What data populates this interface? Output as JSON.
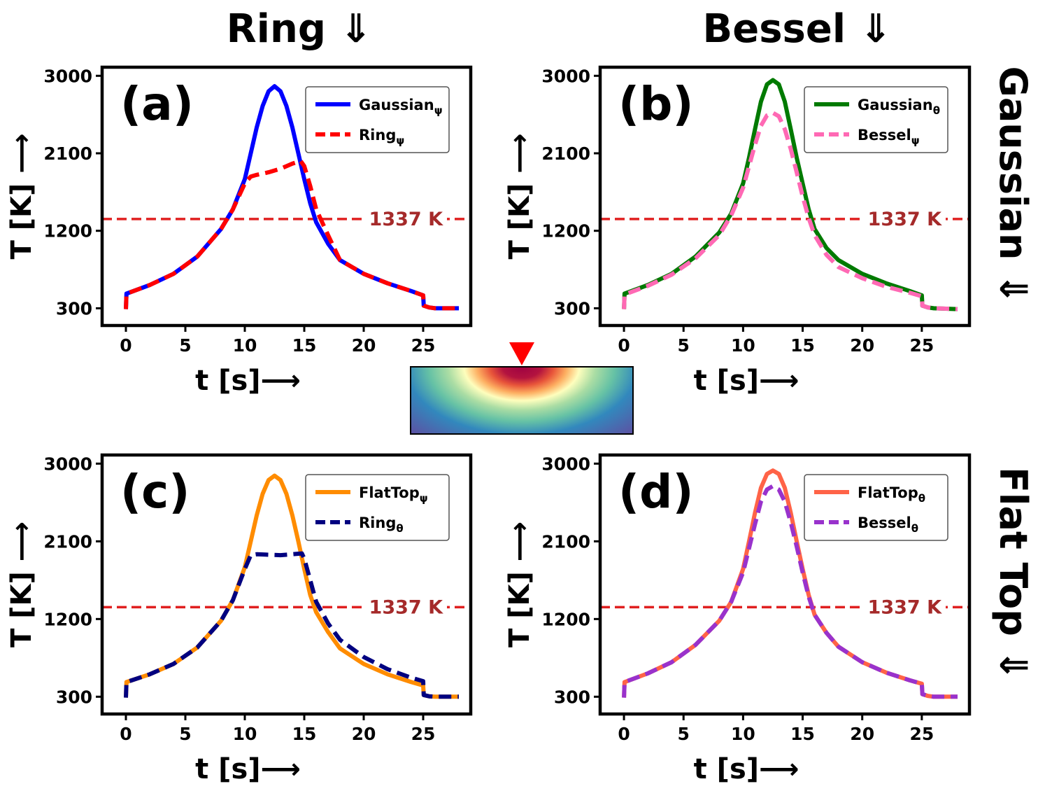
{
  "headers": {
    "col1": "Ring ⇓",
    "col2": "Bessel ⇓",
    "row1": "Gaussian ⇓",
    "row2": "Flat Top ⇓"
  },
  "colors": {
    "gaussian_psi": "#0000ff",
    "ring_psi": "#ff0000",
    "gaussian_theta": "#007a00",
    "bessel_psi": "#ff69b4",
    "flattop_psi": "#ff8c00",
    "ring_theta": "#000080",
    "flattop_theta": "#ff6347",
    "bessel_theta": "#9932cc",
    "melt_line": "#e02020",
    "melt_label": "#a52a2a",
    "marker": "#ff0000"
  },
  "inset": {
    "type": "heatmap-thumbnail",
    "colormap": "spectral",
    "marker_icon": "red-triangle-down"
  },
  "chart_data": [
    {
      "id": "a",
      "type": "line",
      "panel_label": "(a)",
      "xlabel": "t [s]⟶",
      "ylabel": "T [K] ⟶",
      "xlim": [
        -2,
        29
      ],
      "ylim": [
        100,
        3100
      ],
      "xticks": [
        0,
        5,
        10,
        15,
        20,
        25
      ],
      "yticks": [
        300,
        1200,
        2100,
        3000
      ],
      "hline": {
        "y": 1337,
        "label": "1337 K"
      },
      "legend": {
        "position": "top-right"
      },
      "series": [
        {
          "name": "Gaussianψ",
          "main": "Gaussian",
          "sub": "ψ",
          "style": "solid",
          "color_key": "gaussian_psi",
          "x": [
            0,
            0.05,
            2,
            4,
            6,
            8,
            9,
            10,
            10.5,
            11,
            11.5,
            12,
            12.5,
            13,
            13.5,
            14,
            14.5,
            15,
            15.5,
            16,
            17,
            18,
            20,
            22,
            24,
            25,
            25.05,
            25.5,
            26,
            28
          ],
          "y": [
            290,
            470,
            570,
            700,
            900,
            1220,
            1450,
            1800,
            2100,
            2400,
            2650,
            2820,
            2880,
            2820,
            2650,
            2400,
            2100,
            1800,
            1520,
            1300,
            1050,
            860,
            700,
            590,
            500,
            450,
            330,
            310,
            300,
            300
          ]
        },
        {
          "name": "Ringψ",
          "main": "Ring",
          "sub": "ψ",
          "style": "dashed",
          "color_key": "ring_psi",
          "x": [
            0,
            0.05,
            2,
            4,
            6,
            8,
            9,
            10,
            10.5,
            11,
            12,
            13,
            14,
            14.7,
            15,
            15.5,
            16,
            17,
            18,
            20,
            22,
            24,
            25,
            25.05,
            25.5,
            26,
            28
          ],
          "y": [
            290,
            470,
            570,
            700,
            900,
            1220,
            1450,
            1750,
            1830,
            1850,
            1880,
            1920,
            1980,
            2010,
            1950,
            1720,
            1450,
            1150,
            860,
            700,
            590,
            500,
            450,
            330,
            310,
            300,
            300
          ]
        }
      ]
    },
    {
      "id": "b",
      "type": "line",
      "panel_label": "(b)",
      "xlabel": "t [s]⟶",
      "ylabel": "T [K] ⟶",
      "xlim": [
        -2,
        29
      ],
      "ylim": [
        100,
        3100
      ],
      "xticks": [
        0,
        5,
        10,
        15,
        20,
        25
      ],
      "yticks": [
        300,
        1200,
        2100,
        3000
      ],
      "hline": {
        "y": 1337,
        "label": "1337 K"
      },
      "legend": {
        "position": "top-right"
      },
      "series": [
        {
          "name": "Gaussianθ",
          "main": "Gaussian",
          "sub": "θ",
          "style": "solid",
          "color_key": "gaussian_theta",
          "x": [
            0,
            0.05,
            2,
            4,
            6,
            8,
            9,
            10,
            10.5,
            11,
            11.5,
            12,
            12.5,
            13,
            13.5,
            14,
            14.5,
            15,
            15.5,
            16,
            17,
            18,
            20,
            22,
            24,
            25,
            25.05,
            25.5,
            26,
            28
          ],
          "y": [
            290,
            470,
            570,
            700,
            900,
            1180,
            1400,
            1750,
            2050,
            2380,
            2700,
            2900,
            2950,
            2900,
            2700,
            2380,
            2050,
            1750,
            1450,
            1220,
            1000,
            860,
            700,
            590,
            500,
            450,
            330,
            310,
            300,
            290
          ]
        },
        {
          "name": "Besselψ",
          "main": "Bessel",
          "sub": "ψ",
          "style": "dashed",
          "color_key": "bessel_psi",
          "x": [
            0,
            0.05,
            2,
            4,
            6,
            8,
            9,
            10,
            10.5,
            11,
            11.5,
            12,
            12.5,
            13,
            13.5,
            14,
            14.5,
            15,
            15.5,
            16,
            17,
            18,
            20,
            22,
            24,
            25,
            25.05,
            25.5,
            26,
            28
          ],
          "y": [
            290,
            460,
            560,
            690,
            880,
            1150,
            1380,
            1700,
            1950,
            2200,
            2420,
            2540,
            2570,
            2530,
            2380,
            2150,
            1880,
            1600,
            1350,
            1150,
            920,
            780,
            650,
            550,
            480,
            440,
            330,
            310,
            300,
            290
          ]
        }
      ]
    },
    {
      "id": "c",
      "type": "line",
      "panel_label": "(c)",
      "xlabel": "t [s]⟶",
      "ylabel": "T [K] ⟶",
      "xlim": [
        -2,
        29
      ],
      "ylim": [
        100,
        3100
      ],
      "xticks": [
        0,
        5,
        10,
        15,
        20,
        25
      ],
      "yticks": [
        300,
        1200,
        2100,
        3000
      ],
      "hline": {
        "y": 1337,
        "label": "1337 K"
      },
      "legend": {
        "position": "top-right"
      },
      "series": [
        {
          "name": "FlatTopψ",
          "main": "FlatTop",
          "sub": "ψ",
          "style": "solid",
          "color_key": "flattop_psi",
          "x": [
            0,
            0.05,
            2,
            4,
            6,
            8,
            9,
            10,
            10.5,
            11,
            11.5,
            12,
            12.5,
            13,
            13.5,
            14,
            14.5,
            15,
            15.5,
            16,
            17,
            18,
            20,
            22,
            24,
            25,
            25.05,
            25.5,
            26,
            28
          ],
          "y": [
            290,
            470,
            560,
            680,
            870,
            1180,
            1420,
            1800,
            2100,
            2400,
            2650,
            2810,
            2860,
            2810,
            2650,
            2400,
            2100,
            1780,
            1480,
            1280,
            1050,
            860,
            680,
            560,
            470,
            430,
            320,
            305,
            300,
            300
          ]
        },
        {
          "name": "Ringθ",
          "main": "Ring",
          "sub": "θ",
          "style": "dashed",
          "color_key": "ring_theta",
          "x": [
            0,
            0.05,
            2,
            4,
            6,
            8,
            9,
            10,
            10.5,
            11,
            12,
            13,
            14,
            14.8,
            15,
            15.5,
            16,
            17,
            18,
            20,
            22,
            24,
            25,
            25.05,
            25.5,
            26,
            28
          ],
          "y": [
            290,
            470,
            560,
            680,
            870,
            1180,
            1420,
            1780,
            1940,
            1950,
            1945,
            1940,
            1950,
            1960,
            1900,
            1650,
            1400,
            1150,
            960,
            760,
            620,
            520,
            480,
            320,
            305,
            300,
            300
          ]
        }
      ]
    },
    {
      "id": "d",
      "type": "line",
      "panel_label": "(d)",
      "xlabel": "t [s]⟶",
      "ylabel": "T [K] ⟶",
      "xlim": [
        -2,
        29
      ],
      "ylim": [
        100,
        3100
      ],
      "xticks": [
        0,
        5,
        10,
        15,
        20,
        25
      ],
      "yticks": [
        300,
        1200,
        2100,
        3000
      ],
      "hline": {
        "y": 1337,
        "label": "1337 K"
      },
      "legend": {
        "position": "top-right"
      },
      "series": [
        {
          "name": "FlatTopθ",
          "main": "FlatTop",
          "sub": "θ",
          "style": "solid",
          "color_key": "flattop_theta",
          "x": [
            0,
            0.05,
            2,
            4,
            6,
            8,
            9,
            10,
            10.5,
            11,
            11.5,
            12,
            12.5,
            13,
            13.5,
            14,
            14.5,
            15,
            15.5,
            16,
            17,
            18,
            20,
            22,
            24,
            25,
            25.05,
            25.5,
            26,
            28
          ],
          "y": [
            290,
            470,
            570,
            700,
            900,
            1180,
            1400,
            1780,
            2100,
            2430,
            2720,
            2880,
            2920,
            2880,
            2720,
            2430,
            2100,
            1780,
            1480,
            1250,
            1040,
            880,
            700,
            580,
            490,
            450,
            330,
            310,
            300,
            300
          ]
        },
        {
          "name": "Besselθ",
          "main": "Bessel",
          "sub": "θ",
          "style": "dashed",
          "color_key": "bessel_theta",
          "x": [
            0,
            0.05,
            2,
            4,
            6,
            8,
            9,
            10,
            10.5,
            11,
            11.5,
            12,
            12.5,
            13,
            13.5,
            14,
            14.5,
            15,
            15.5,
            16,
            17,
            18,
            20,
            22,
            24,
            25,
            25.05,
            25.5,
            26,
            28
          ],
          "y": [
            290,
            470,
            570,
            700,
            900,
            1180,
            1400,
            1740,
            2020,
            2300,
            2560,
            2700,
            2740,
            2700,
            2560,
            2320,
            2040,
            1740,
            1460,
            1250,
            1040,
            880,
            700,
            580,
            490,
            450,
            330,
            310,
            300,
            300
          ]
        }
      ]
    }
  ]
}
